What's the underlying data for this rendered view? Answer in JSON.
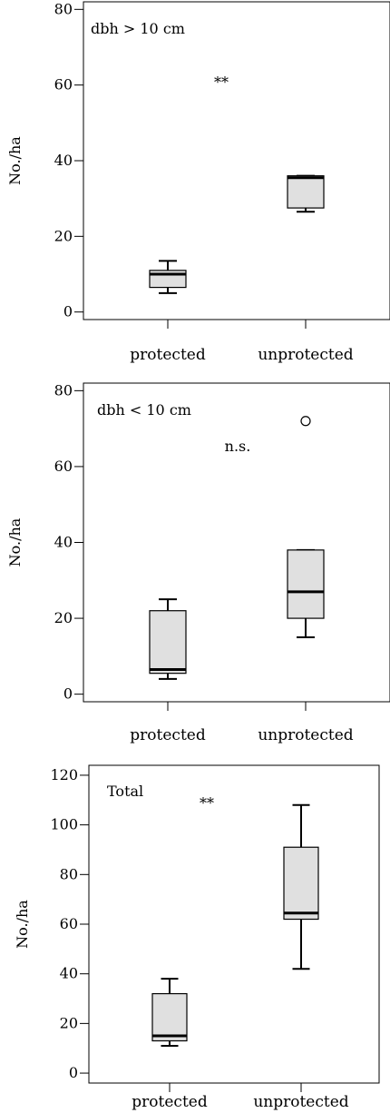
{
  "chart_data": [
    {
      "type": "box",
      "panel_label": "dbh > 10 cm",
      "significance": "**",
      "ylabel": "No./ha",
      "ylim": [
        -2,
        82
      ],
      "yticks": [
        0,
        20,
        40,
        60,
        80
      ],
      "categories": [
        "protected",
        "unprotected"
      ],
      "boxes": [
        {
          "name": "protected",
          "whisker_low": 5,
          "q1": 6.5,
          "median": 10,
          "q3": 11,
          "whisker_high": 13.5,
          "outliers": []
        },
        {
          "name": "unprotected",
          "whisker_low": 26.5,
          "q1": 27.5,
          "median": 35.5,
          "q3": 36,
          "whisker_high": 36,
          "outliers": []
        }
      ]
    },
    {
      "type": "box",
      "panel_label": "dbh < 10 cm",
      "significance": "n.s.",
      "ylabel": "No./ha",
      "ylim": [
        -2,
        82
      ],
      "yticks": [
        0,
        20,
        40,
        60,
        80
      ],
      "categories": [
        "protected",
        "unprotected"
      ],
      "boxes": [
        {
          "name": "protected",
          "whisker_low": 4,
          "q1": 5.5,
          "median": 6.5,
          "q3": 22,
          "whisker_high": 25,
          "outliers": []
        },
        {
          "name": "unprotected",
          "whisker_low": 15,
          "q1": 20,
          "median": 27,
          "q3": 38,
          "whisker_high": 38,
          "outliers": [
            72
          ]
        }
      ]
    },
    {
      "type": "box",
      "panel_label": "Total",
      "significance": "**",
      "ylabel": "No./ha",
      "ylim": [
        -4,
        124
      ],
      "yticks": [
        0,
        20,
        40,
        60,
        80,
        100,
        120
      ],
      "categories": [
        "protected",
        "unprotected"
      ],
      "boxes": [
        {
          "name": "protected",
          "whisker_low": 11,
          "q1": 13,
          "median": 15,
          "q3": 32,
          "whisker_high": 38,
          "outliers": []
        },
        {
          "name": "unprotected",
          "whisker_low": 42,
          "q1": 62,
          "median": 64.5,
          "q3": 91,
          "whisker_high": 108,
          "outliers": []
        }
      ]
    }
  ]
}
